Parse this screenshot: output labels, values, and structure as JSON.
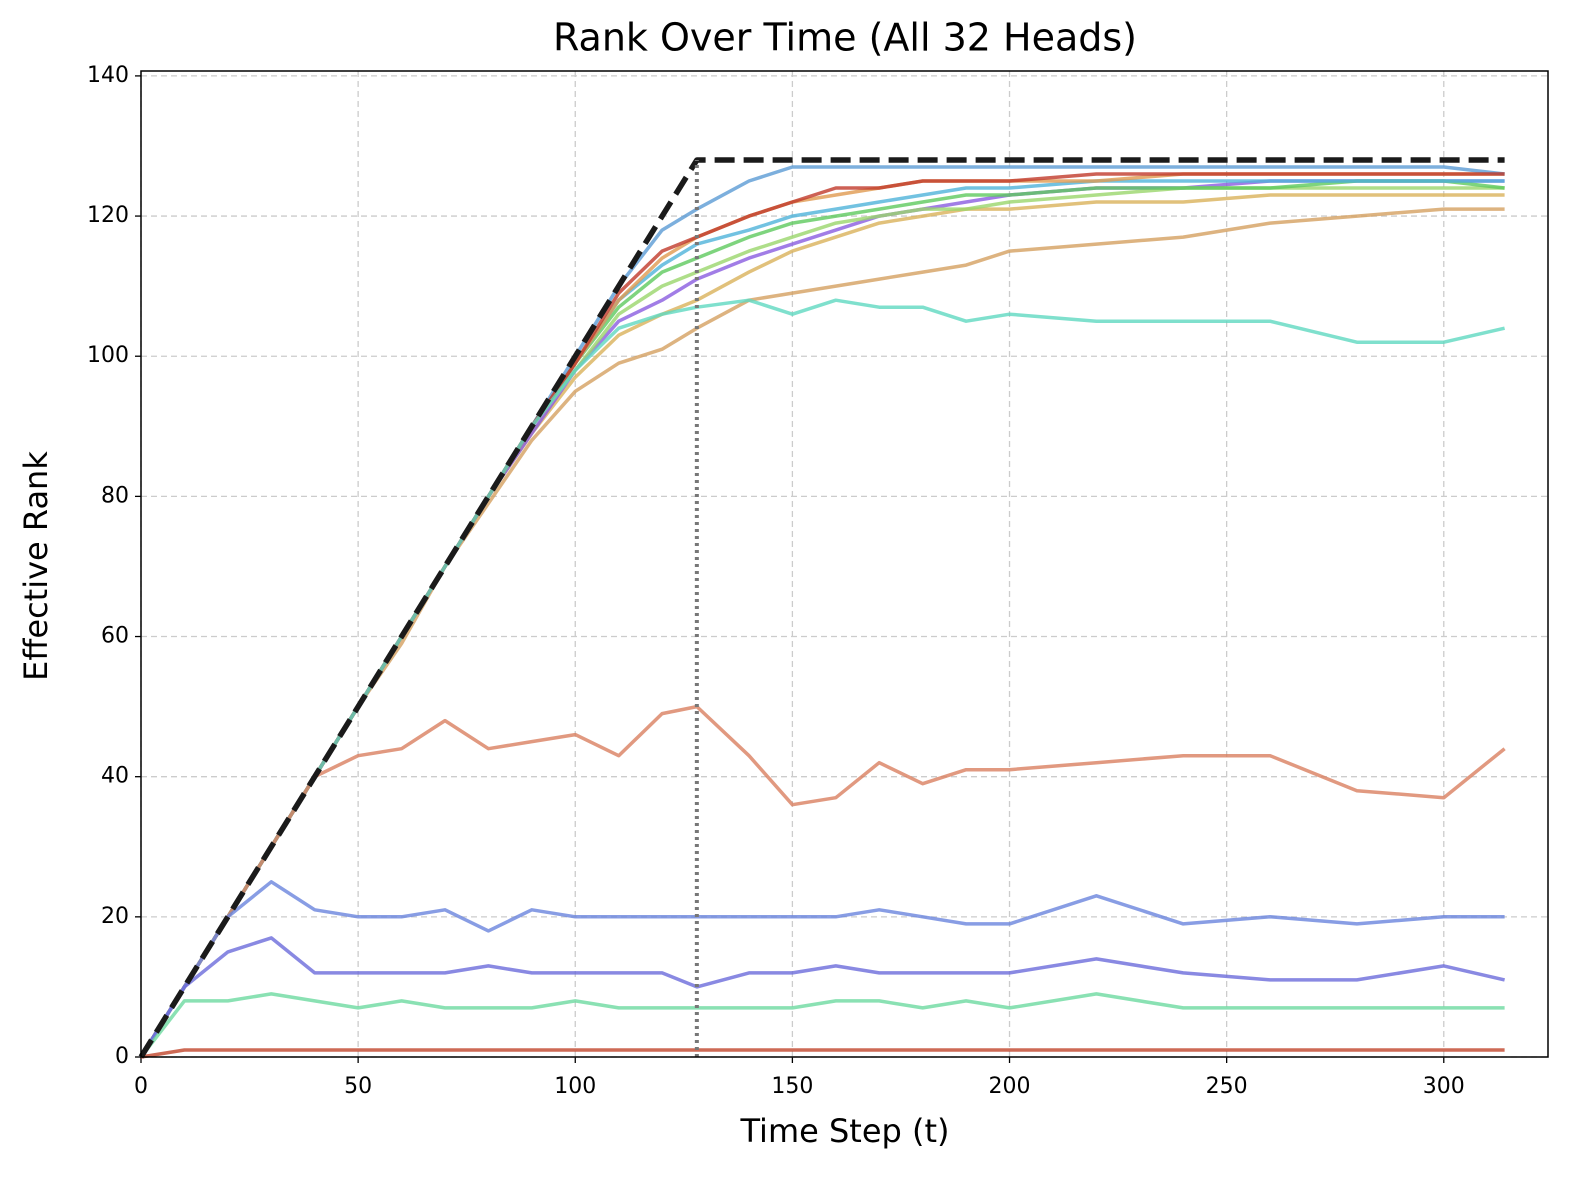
{
  "chart_data": {
    "type": "line",
    "title": "Rank Over Time (All 32 Heads)",
    "x_label": "Time Step (t)",
    "y_label": "Effective Rank",
    "x": [
      0,
      10,
      20,
      30,
      40,
      50,
      60,
      70,
      80,
      90,
      100,
      110,
      120,
      128,
      140,
      150,
      160,
      170,
      180,
      190,
      200,
      220,
      240,
      260,
      280,
      300,
      314
    ],
    "series": [
      {
        "color": "#d4a060",
        "values": [
          0,
          10,
          20,
          30,
          40,
          50,
          59,
          70,
          79,
          88,
          95,
          99,
          101,
          104,
          108,
          109,
          110,
          111,
          112,
          113,
          115,
          116,
          117,
          119,
          120,
          121,
          121
        ]
      },
      {
        "color": "#d9b25a",
        "values": [
          0,
          10,
          20,
          30,
          40,
          50,
          60,
          70,
          80,
          89,
          97,
          103,
          106,
          108,
          112,
          115,
          117,
          119,
          120,
          121,
          121,
          122,
          122,
          123,
          123,
          123,
          123
        ]
      },
      {
        "color": "#8a5ce0",
        "values": [
          0,
          10,
          20,
          30,
          40,
          50,
          60,
          70,
          80,
          89,
          98,
          105,
          108,
          111,
          114,
          116,
          118,
          120,
          121,
          122,
          123,
          124,
          124,
          125,
          125,
          125,
          125
        ]
      },
      {
        "color": "#9ad66b",
        "values": [
          0,
          10,
          20,
          30,
          40,
          50,
          60,
          70,
          80,
          90,
          98,
          106,
          110,
          112,
          115,
          117,
          119,
          120,
          121,
          121,
          122,
          123,
          124,
          124,
          124,
          124,
          124
        ]
      },
      {
        "color": "#5ec95e",
        "values": [
          0,
          10,
          20,
          30,
          40,
          50,
          60,
          70,
          80,
          90,
          99,
          107,
          112,
          114,
          117,
          119,
          120,
          121,
          122,
          123,
          123,
          124,
          124,
          124,
          125,
          125,
          124
        ]
      },
      {
        "color": "#4fb3d9",
        "values": [
          0,
          10,
          20,
          30,
          40,
          50,
          60,
          70,
          80,
          90,
          99,
          108,
          113,
          116,
          118,
          120,
          121,
          122,
          123,
          124,
          124,
          125,
          125,
          125,
          125,
          125,
          125
        ]
      },
      {
        "color": "#e09a50",
        "values": [
          0,
          10,
          20,
          30,
          40,
          50,
          60,
          70,
          80,
          90,
          99,
          108,
          114,
          117,
          120,
          122,
          123,
          124,
          125,
          125,
          125,
          125,
          126,
          126,
          126,
          126,
          126
        ]
      },
      {
        "color": "#5b9bd5",
        "values": [
          0,
          10,
          20,
          30,
          40,
          50,
          60,
          70,
          80,
          90,
          100,
          110,
          118,
          121,
          125,
          127,
          127,
          127,
          127,
          127,
          127,
          127,
          127,
          127,
          127,
          127,
          126
        ]
      },
      {
        "color": "#c0392b",
        "values": [
          0,
          10,
          20,
          30,
          40,
          50,
          60,
          70,
          80,
          90,
          99,
          109,
          115,
          117,
          120,
          122,
          124,
          124,
          125,
          125,
          125,
          126,
          126,
          126,
          126,
          126,
          126
        ]
      },
      {
        "color": "#5fd8c0",
        "values": [
          0,
          10,
          20,
          30,
          40,
          50,
          60,
          70,
          80,
          90,
          98,
          104,
          106,
          107,
          108,
          106,
          108,
          107,
          107,
          105,
          106,
          105,
          105,
          105,
          102,
          102,
          104
        ]
      },
      {
        "color": "#d98060",
        "values": [
          0,
          10,
          20,
          30,
          40,
          43,
          44,
          48,
          44,
          45,
          46,
          43,
          49,
          50,
          43,
          36,
          37,
          42,
          39,
          41,
          41,
          42,
          43,
          43,
          38,
          37,
          44
        ]
      },
      {
        "color": "#6a85dd",
        "values": [
          0,
          10,
          20,
          25,
          21,
          20,
          20,
          21,
          18,
          21,
          20,
          20,
          20,
          20,
          20,
          20,
          20,
          21,
          20,
          19,
          19,
          23,
          19,
          20,
          19,
          20,
          20
        ]
      },
      {
        "color": "#6b6bdb",
        "values": [
          0,
          10,
          15,
          17,
          12,
          12,
          12,
          12,
          13,
          12,
          12,
          12,
          12,
          10,
          12,
          12,
          13,
          12,
          12,
          12,
          12,
          14,
          12,
          11,
          11,
          13,
          11
        ]
      },
      {
        "color": "#6dd9a0",
        "values": [
          0,
          8,
          8,
          9,
          8,
          7,
          8,
          7,
          7,
          7,
          8,
          7,
          7,
          7,
          7,
          7,
          8,
          8,
          7,
          8,
          7,
          9,
          7,
          7,
          7,
          7,
          7
        ]
      },
      {
        "color": "#c0452a",
        "values": [
          0,
          1,
          1,
          1,
          1,
          1,
          1,
          1,
          1,
          1,
          1,
          1,
          1,
          1,
          1,
          1,
          1,
          1,
          1,
          1,
          1,
          1,
          1,
          1,
          1,
          1,
          1
        ]
      }
    ],
    "reference_line": {
      "color": "#1a1a1a",
      "x": [
        0,
        128,
        314
      ],
      "values": [
        0,
        128,
        128
      ]
    },
    "vline": {
      "color": "#777777",
      "x": 128,
      "top": 128
    },
    "xlim": [
      0,
      324
    ],
    "ylim": [
      0,
      140.7
    ],
    "xticks": [
      0,
      50,
      100,
      150,
      200,
      250,
      300
    ],
    "yticks": [
      0,
      20,
      40,
      60,
      80,
      100,
      120,
      140
    ],
    "grid": true
  }
}
